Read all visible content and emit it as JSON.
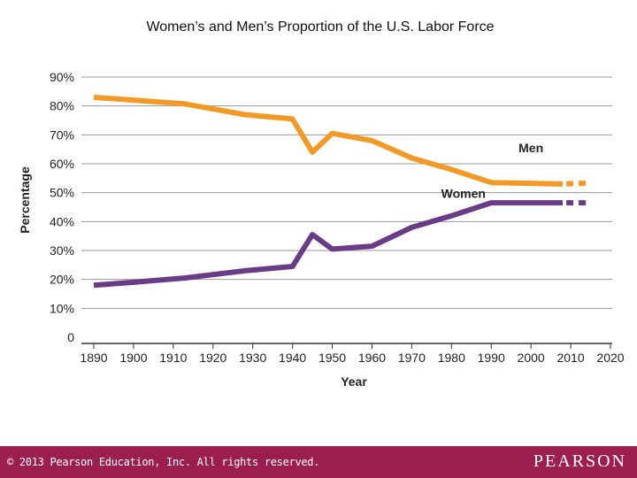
{
  "slide": {
    "title": "Women’s and Men’s Proportion of the U.S. Labor Force"
  },
  "chart_data": {
    "type": "line",
    "title": "Women’s and Men’s Proportion of the U.S. Labor Force",
    "xlabel": "Year",
    "ylabel": "Percentage",
    "xlim": [
      1890,
      2020
    ],
    "ylim": [
      0,
      90
    ],
    "x_ticks": [
      "1890",
      "1900",
      "1910",
      "1920",
      "1930",
      "1940",
      "1950",
      "1960",
      "1970",
      "1980",
      "1990",
      "2000",
      "2010",
      "2020"
    ],
    "y_ticks": [
      "0",
      "10%",
      "20%",
      "30%",
      "40%",
      "50%",
      "60%",
      "70%",
      "80%",
      "90%"
    ],
    "y_tick_values": [
      0,
      10,
      20,
      30,
      40,
      50,
      60,
      70,
      80,
      90
    ],
    "grid": true,
    "series": [
      {
        "name": "Men",
        "color": "#f39a26",
        "x": [
          1890,
          1900,
          1913,
          1928,
          1940,
          1945,
          1950,
          1960,
          1970,
          1980,
          1990,
          2008
        ],
        "values": [
          83,
          82,
          80.7,
          77,
          75.5,
          64,
          70.5,
          68,
          62,
          58,
          53.5,
          53
        ],
        "projection": {
          "x": [
            2008,
            2014
          ],
          "values": [
            53,
            53.3
          ]
        }
      },
      {
        "name": "Women",
        "color": "#6a3b86",
        "x": [
          1890,
          1900,
          1913,
          1928,
          1940,
          1945,
          1950,
          1960,
          1970,
          1980,
          1990,
          2008
        ],
        "values": [
          18,
          19,
          20.5,
          23,
          24.5,
          35.5,
          30.5,
          31.5,
          38,
          42,
          46.5,
          46.5
        ],
        "projection": {
          "x": [
            2008,
            2014
          ],
          "values": [
            46.5,
            46.5
          ]
        }
      }
    ]
  },
  "footer": {
    "copyright": "© 2013 Pearson Education, Inc. All rights reserved.",
    "brand": "PEARSON"
  }
}
